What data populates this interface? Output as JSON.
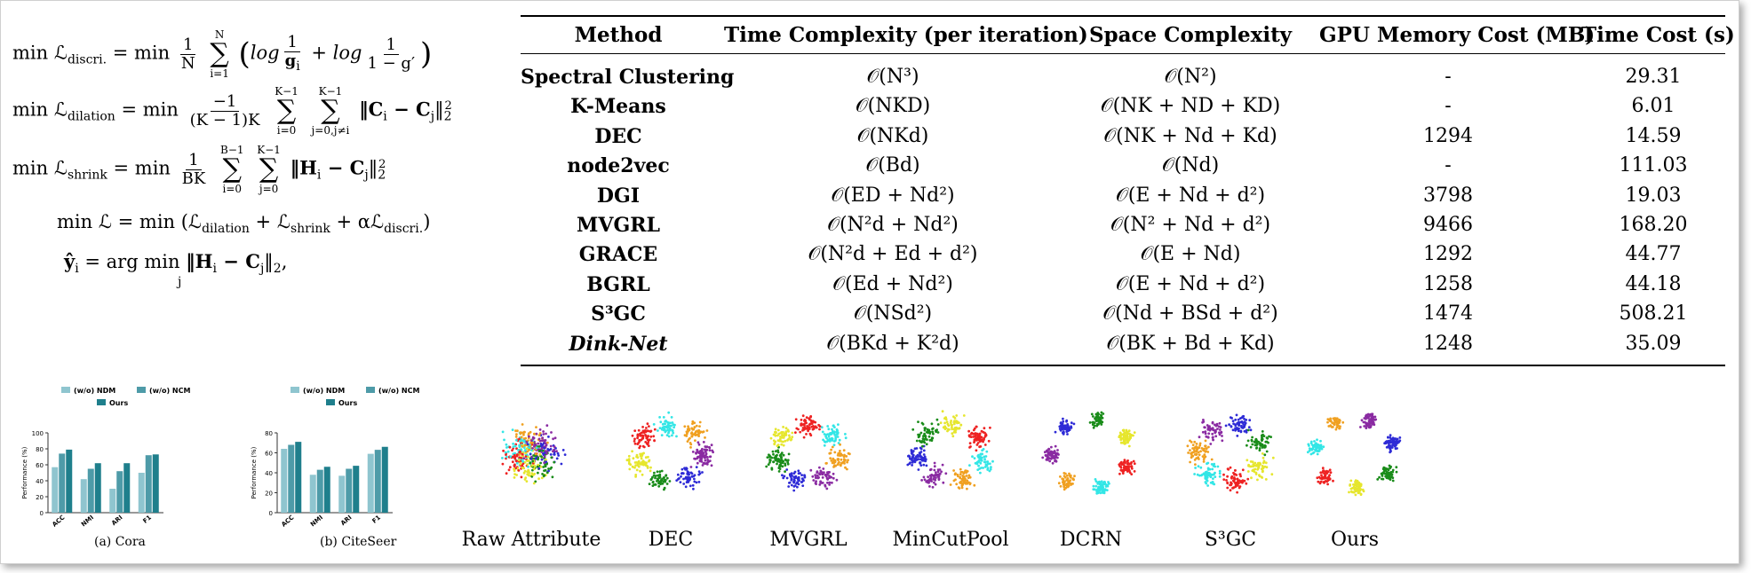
{
  "equations": {
    "eq1": {
      "lhs": "min ℒ",
      "lhs_sub": "discri.",
      "rhs_prefix": "= min",
      "num": "1",
      "den": "N",
      "sum_top": "N",
      "sum_bot": "i=1",
      "body": "(log 1/g_i + log 1/(1 − g′))",
      "log": "log",
      "one": "1",
      "g_i": "g",
      "g_sub": "i",
      "one_minus": "1 − g′"
    },
    "eq2": {
      "lhs": "min ℒ",
      "lhs_sub": "dilation",
      "rhs_prefix": "= min",
      "num": "−1",
      "den": "(K − 1)K",
      "sum1_top": "K−1",
      "sum1_bot": "i=0",
      "sum2_top": "K−1",
      "sum2_bot": "j=0,j≠i",
      "body": "‖C_i − C_j‖",
      "norm": "‖C",
      "i": "i",
      "minus": " − C",
      "j": "j",
      "close": "‖",
      "sq": "2",
      "sub2": "2"
    },
    "eq3": {
      "lhs": "min ℒ",
      "lhs_sub": "shrink",
      "rhs_prefix": "= min",
      "num": "1",
      "den": "BK",
      "sum1_top": "B−1",
      "sum1_bot": "i=0",
      "sum2_top": "K−1",
      "sum2_bot": "j=0",
      "norm": "‖H",
      "i": "i",
      "minus": " − C",
      "j": "j",
      "close": "‖",
      "sq": "2",
      "sub2": "2"
    },
    "eq4": {
      "text_a": "min ℒ = min (ℒ",
      "sub_a": "dilation",
      "text_b": " + ℒ",
      "sub_b": "shrink",
      "text_c": " + αℒ",
      "sub_c": "discri.",
      "text_d": ")"
    },
    "eq5": {
      "lhs": "ŷ",
      "lhs_sub": "i",
      "mid": " = arg min",
      "under": "j",
      "norm": " ‖H",
      "i": "i",
      "minus": " − C",
      "j": "j",
      "close": "‖",
      "sub2": "2",
      "tail": ","
    }
  },
  "table": {
    "headers": [
      "Method",
      "Time Complexity (per iteration)",
      "Space Complexity",
      "GPU Memory Cost (MB)",
      "Time Cost (s)"
    ],
    "rows": [
      {
        "method": "Spectral Clustering",
        "time": "𝒪(N³)",
        "space": "𝒪(N²)",
        "gpu": "-",
        "cost": "29.31"
      },
      {
        "method": "K-Means",
        "time": "𝒪(NKD)",
        "space": "𝒪(NK + ND + KD)",
        "gpu": "-",
        "cost": "6.01"
      },
      {
        "method": "DEC",
        "time": "𝒪(NKd)",
        "space": "𝒪(NK + Nd + Kd)",
        "gpu": "1294",
        "cost": "14.59"
      },
      {
        "method": "node2vec",
        "time": "𝒪(Bd)",
        "space": "𝒪(Nd)",
        "gpu": "-",
        "cost": "111.03"
      },
      {
        "method": "DGI",
        "time": "𝒪(ED + Nd²)",
        "space": "𝒪(E + Nd + d²)",
        "gpu": "3798",
        "cost": "19.03"
      },
      {
        "method": "MVGRL",
        "time": "𝒪(N²d + Nd²)",
        "space": "𝒪(N² + Nd + d²)",
        "gpu": "9466",
        "cost": "168.20"
      },
      {
        "method": "GRACE",
        "time": "𝒪(N²d + Ed + d²)",
        "space": "𝒪(E + Nd)",
        "gpu": "1292",
        "cost": "44.77"
      },
      {
        "method": "BGRL",
        "time": "𝒪(Ed + Nd²)",
        "space": "𝒪(E + Nd + d²)",
        "gpu": "1258",
        "cost": "44.18"
      },
      {
        "method": "S³GC",
        "time": "𝒪(NSd²)",
        "space": "𝒪(Nd + BSd + d²)",
        "gpu": "1474",
        "cost": "508.21"
      },
      {
        "method": "Dink-Net",
        "time": "𝒪(BKd + K²d)",
        "space": "𝒪(BK + Bd + Kd)",
        "gpu": "1248",
        "cost": "35.09"
      }
    ]
  },
  "chart_data": [
    {
      "type": "bar",
      "caption": "(a) Cora",
      "categories": [
        "ACC",
        "NMI",
        "ARI",
        "F1"
      ],
      "series": [
        {
          "name": "(w/o) NDM",
          "values": [
            57,
            42,
            30,
            50
          ]
        },
        {
          "name": "(w/o) NCM",
          "values": [
            74,
            55,
            52,
            72
          ]
        },
        {
          "name": "Ours",
          "values": [
            79,
            62,
            62,
            73
          ]
        }
      ],
      "ylabel": "Performance (%)",
      "ylim": [
        0,
        100
      ],
      "yticks": [
        "0",
        "20",
        "40",
        "60",
        "80",
        "100"
      ],
      "colors": [
        "#8fc5cf",
        "#4e9ba8",
        "#1f7f8c"
      ]
    },
    {
      "type": "bar",
      "caption": "(b) CiteSeer",
      "categories": [
        "ACC",
        "NMI",
        "ARI",
        "F1"
      ],
      "series": [
        {
          "name": "(w/o) NDM",
          "values": [
            64,
            38,
            37,
            59
          ]
        },
        {
          "name": "(w/o) NCM",
          "values": [
            68,
            43,
            44,
            63
          ]
        },
        {
          "name": "Ours",
          "values": [
            71,
            46,
            47,
            66
          ]
        }
      ],
      "ylabel": "Performance (%)",
      "ylim": [
        0,
        80
      ],
      "yticks": [
        "0",
        "20",
        "40",
        "60",
        "80"
      ],
      "colors": [
        "#8fc5cf",
        "#4e9ba8",
        "#1f7f8c"
      ]
    }
  ],
  "scatter_panels": [
    {
      "label": "Raw Attribute",
      "pattern": "mixed"
    },
    {
      "label": "DEC",
      "pattern": "spread"
    },
    {
      "label": "MVGRL",
      "pattern": "spread"
    },
    {
      "label": "MinCutPool",
      "pattern": "wide"
    },
    {
      "label": "DCRN",
      "pattern": "clustered"
    },
    {
      "label": "S³GC",
      "pattern": "spread"
    },
    {
      "label": "Ours",
      "pattern": "clustered"
    }
  ],
  "cluster_colors": [
    "#2e2bd6",
    "#1a8c1a",
    "#e6e62e",
    "#ee2222",
    "#33e6e6",
    "#f0a020",
    "#8a2ba2"
  ]
}
